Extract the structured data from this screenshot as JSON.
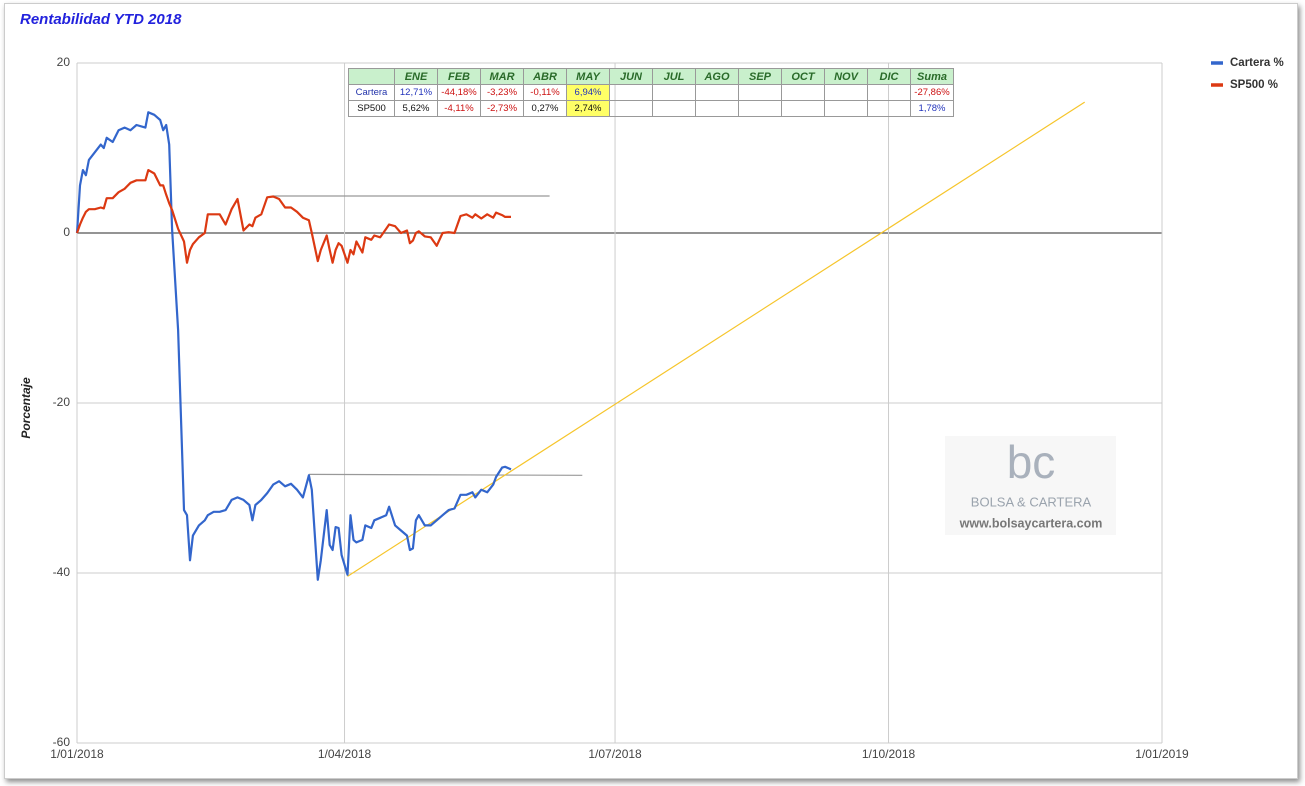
{
  "chart_data": {
    "type": "line",
    "title": "Rentabilidad YTD 2018",
    "y_label": "Porcentaje",
    "x": [
      "2018-01-01",
      "2018-01-02",
      "2018-01-03",
      "2018-01-04",
      "2018-01-05",
      "2018-01-07",
      "2018-01-09",
      "2018-01-10",
      "2018-01-11",
      "2018-01-13",
      "2018-01-15",
      "2018-01-17",
      "2018-01-19",
      "2018-01-21",
      "2018-01-24",
      "2018-01-25",
      "2018-01-27",
      "2018-01-29",
      "2018-01-30",
      "2018-01-31",
      "2018-02-01",
      "2018-02-02",
      "2018-02-04",
      "2018-02-06",
      "2018-02-07",
      "2018-02-08",
      "2018-02-09",
      "2018-02-11",
      "2018-02-13",
      "2018-02-14",
      "2018-02-16",
      "2018-02-18",
      "2018-02-20",
      "2018-02-22",
      "2018-02-24",
      "2018-02-26",
      "2018-02-28",
      "2018-03-01",
      "2018-03-02",
      "2018-03-04",
      "2018-03-06",
      "2018-03-08",
      "2018-03-10",
      "2018-03-12",
      "2018-03-14",
      "2018-03-16",
      "2018-03-18",
      "2018-03-20",
      "2018-03-21",
      "2018-03-23",
      "2018-03-24",
      "2018-03-26",
      "2018-03-27",
      "2018-03-28",
      "2018-03-29",
      "2018-03-30",
      "2018-03-31",
      "2018-04-02",
      "2018-04-03",
      "2018-04-04",
      "2018-04-05",
      "2018-04-07",
      "2018-04-08",
      "2018-04-10",
      "2018-04-11",
      "2018-04-13",
      "2018-04-15",
      "2018-04-16",
      "2018-04-18",
      "2018-04-20",
      "2018-04-22",
      "2018-04-23",
      "2018-04-24",
      "2018-04-25",
      "2018-04-26",
      "2018-04-28",
      "2018-04-30",
      "2018-05-02",
      "2018-05-04",
      "2018-05-06",
      "2018-05-08",
      "2018-05-10",
      "2018-05-12",
      "2018-05-14",
      "2018-05-15",
      "2018-05-17",
      "2018-05-19",
      "2018-05-21",
      "2018-05-22",
      "2018-05-24",
      "2018-05-25",
      "2018-05-27"
    ],
    "series": [
      {
        "name": "Cartera %",
        "color": "#3366cc",
        "values": [
          0,
          5.6,
          7.4,
          6.8,
          8.6,
          9.5,
          10.4,
          10.0,
          11.2,
          10.7,
          12.1,
          12.4,
          12.1,
          12.7,
          12.4,
          14.2,
          13.9,
          13.3,
          12.1,
          12.7,
          10.4,
          0.4,
          -11.4,
          -32.6,
          -33.2,
          -38.5,
          -35.6,
          -34.4,
          -33.8,
          -33.2,
          -32.8,
          -32.8,
          -32.6,
          -31.4,
          -31.1,
          -31.4,
          -32,
          -33.8,
          -32,
          -31.4,
          -30.6,
          -29.6,
          -29.2,
          -29.8,
          -29.5,
          -30.2,
          -31.1,
          -28.5,
          -30.2,
          -40.8,
          -38.5,
          -32.6,
          -36.7,
          -37.3,
          -34.6,
          -34.7,
          -37.9,
          -40.2,
          -33.2,
          -36.1,
          -36.4,
          -36.1,
          -34.4,
          -34.7,
          -33.8,
          -33.5,
          -33.2,
          -32.2,
          -34.4,
          -35,
          -35.6,
          -37.3,
          -37.1,
          -33.8,
          -33.2,
          -34.4,
          -34.4,
          -33.8,
          -33.2,
          -32.6,
          -32.4,
          -30.8,
          -30.8,
          -30.5,
          -31.1,
          -30.2,
          -30.5,
          -29.6,
          -28.7,
          -27.6,
          -27.5,
          -27.8
        ]
      },
      {
        "name": "SP500 %",
        "color": "#dc3912",
        "values": [
          0,
          1,
          1.8,
          2.5,
          2.8,
          2.8,
          3,
          2.9,
          4.1,
          4.1,
          4.8,
          5.2,
          5.9,
          6.2,
          6.2,
          7.4,
          7,
          5.6,
          5.6,
          4.5,
          3.5,
          2.7,
          0.5,
          -1,
          -3.5,
          -2,
          -1.3,
          -0.5,
          0,
          2.2,
          2.2,
          2.2,
          1,
          2.8,
          4,
          0.3,
          1,
          0.8,
          1.8,
          2.2,
          4.2,
          4.3,
          4,
          3,
          3,
          2.5,
          1.8,
          1.5,
          0,
          -3.3,
          -2,
          -0.3,
          -2,
          -3.5,
          -2,
          -1.2,
          -1.5,
          -3.5,
          -2,
          -2.5,
          -1,
          -2.3,
          -0.5,
          -0.8,
          -0.3,
          -0.5,
          0.5,
          1,
          0.8,
          0,
          0.3,
          -1.2,
          -0.9,
          0,
          0.2,
          -0.4,
          -0.5,
          -1.5,
          0,
          0.1,
          0,
          2,
          2.2,
          1.8,
          2.2,
          1.7,
          2.2,
          1.8,
          2.4,
          2.1,
          1.9,
          1.9
        ]
      }
    ],
    "annotation_lines": [
      {
        "color": "#999999",
        "x": [
          "2018-03-08",
          "2018-06-09"
        ],
        "y": [
          4.35,
          4.35
        ]
      },
      {
        "color": "#999999",
        "x": [
          "2018-03-20",
          "2018-06-20"
        ],
        "y": [
          -28.4,
          -28.5
        ]
      },
      {
        "color": "#f6c52b",
        "x": [
          "2018-04-02",
          "2018-12-06"
        ],
        "y": [
          -40.4,
          15.4
        ]
      }
    ],
    "xlim": [
      "2018-01-01",
      "2019-01-01"
    ],
    "xticks": [
      {
        "value": "2018-01-01",
        "label": "1/01/2018"
      },
      {
        "value": "2018-04-01",
        "label": "1/04/2018"
      },
      {
        "value": "2018-07-01",
        "label": "1/07/2018"
      },
      {
        "value": "2018-10-01",
        "label": "1/10/2018"
      },
      {
        "value": "2019-01-01",
        "label": "1/01/2019"
      }
    ],
    "ylim": [
      -60,
      20
    ],
    "yticks": [
      -60,
      -40,
      -20,
      0,
      20
    ],
    "grid": true,
    "legend": "right"
  },
  "table": {
    "header": [
      null,
      "ENE",
      "FEB",
      "MAR",
      "ABR",
      "MAY",
      "JUN",
      "JUL",
      "AGO",
      "SEP",
      "OCT",
      "NOV",
      "DIC",
      "Suma"
    ],
    "rows": [
      [
        "Cartera",
        "12,71%",
        "-44,18%",
        "-3,23%",
        "-0,11%",
        "6,94%",
        null,
        null,
        null,
        null,
        null,
        null,
        null,
        "-27,86%"
      ],
      [
        "SP500",
        "5,62%",
        "-4,11%",
        "-2,73%",
        "0,27%",
        "2,74%",
        null,
        null,
        null,
        null,
        null,
        null,
        null,
        "1,78%"
      ]
    ]
  },
  "watermark": {
    "logo": "bc",
    "name": "BOLSA & CARTERA",
    "url": "www.bolsaycartera.com"
  }
}
